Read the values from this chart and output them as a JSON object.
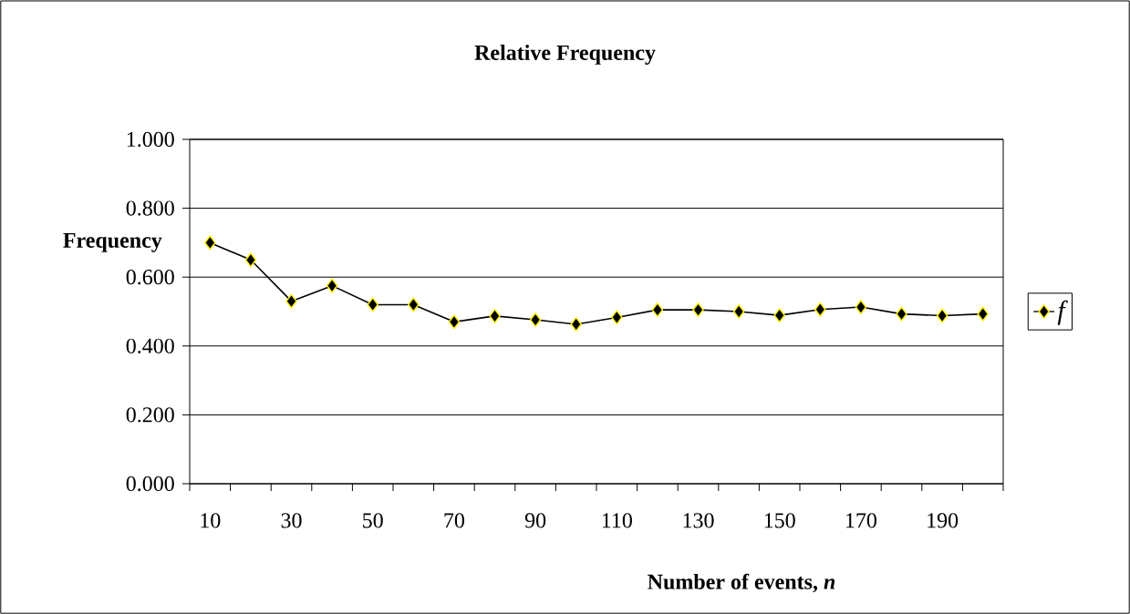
{
  "chart_data": {
    "type": "line",
    "title": "Relative Frequency",
    "xlabel": "Number of events, *n*",
    "ylabel": "Frequency",
    "categories": [
      "10",
      null,
      "30",
      null,
      "50",
      null,
      "70",
      null,
      "90",
      null,
      "110",
      null,
      "130",
      null,
      "150",
      null,
      "170",
      null,
      "190",
      null
    ],
    "series": [
      {
        "name": "f",
        "color": "#000000",
        "values": [
          0.7,
          0.65,
          0.53,
          0.575,
          0.52,
          0.52,
          0.47,
          0.487,
          0.476,
          0.463,
          0.483,
          0.505,
          0.505,
          0.5,
          0.489,
          0.506,
          0.513,
          0.493,
          0.488,
          0.493
        ]
      }
    ],
    "ylim": [
      0,
      1
    ],
    "yticks": [
      {
        "value": 0,
        "label": "0.000"
      },
      {
        "value": 0.2,
        "label": "0.200"
      },
      {
        "value": 0.4,
        "label": "0.400"
      },
      {
        "value": 0.6,
        "label": "0.600"
      },
      {
        "value": 0.8,
        "label": "0.800"
      },
      {
        "value": 1,
        "label": "1.000"
      }
    ],
    "grid": "y",
    "legend": "right",
    "marker": "diamond",
    "line_style": "solid"
  }
}
